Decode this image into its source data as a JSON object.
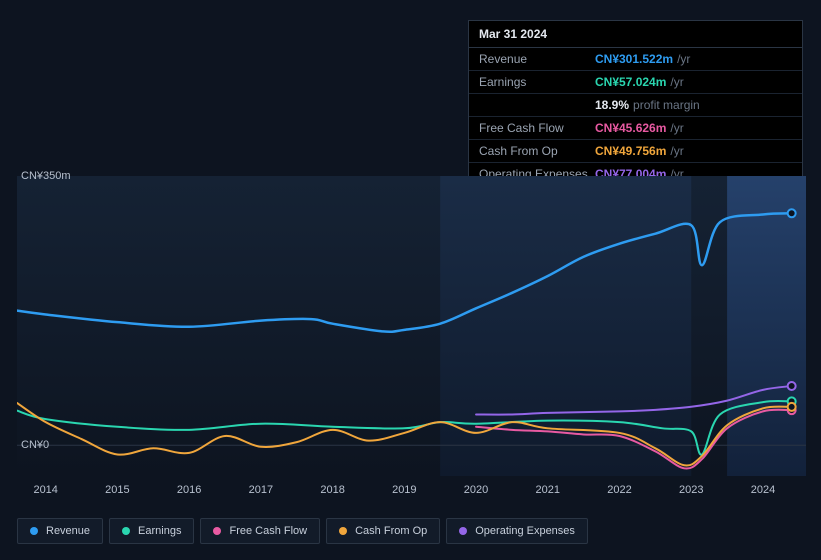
{
  "chart": {
    "type": "line",
    "background_color": "#0d1420",
    "grid_color": "#1a2330",
    "future_highlight_start": 2023.5,
    "future_highlight_color": "#1c2b42",
    "y_axis": {
      "ticks": [
        {
          "v": 0,
          "label": "CN¥0"
        },
        {
          "v": 350,
          "label": "CN¥350m"
        }
      ],
      "min": -40,
      "max": 350,
      "label_fontsize": 11
    },
    "x_axis": {
      "ticks": [
        2014,
        2015,
        2016,
        2017,
        2018,
        2019,
        2020,
        2021,
        2022,
        2023,
        2024
      ],
      "min": 2013.6,
      "max": 2024.6,
      "label_fontsize": 11
    },
    "series": [
      {
        "name": "Revenue",
        "color": "#2e9cf1",
        "line_width": 2.5,
        "end_marker": true,
        "points": [
          [
            2013.6,
            175
          ],
          [
            2014,
            170
          ],
          [
            2015,
            160
          ],
          [
            2016,
            154
          ],
          [
            2017,
            162
          ],
          [
            2017.7,
            164
          ],
          [
            2018,
            158
          ],
          [
            2018.7,
            148
          ],
          [
            2019,
            150
          ],
          [
            2019.5,
            158
          ],
          [
            2020,
            178
          ],
          [
            2020.5,
            198
          ],
          [
            2021,
            220
          ],
          [
            2021.5,
            245
          ],
          [
            2022,
            262
          ],
          [
            2022.5,
            275
          ],
          [
            2023,
            286
          ],
          [
            2023.15,
            234
          ],
          [
            2023.4,
            290
          ],
          [
            2024,
            300
          ],
          [
            2024.4,
            301.5
          ]
        ]
      },
      {
        "name": "Earnings",
        "color": "#2ad6b0",
        "line_width": 2,
        "end_marker": true,
        "points": [
          [
            2013.6,
            45
          ],
          [
            2014,
            34
          ],
          [
            2015,
            24
          ],
          [
            2016,
            20
          ],
          [
            2017,
            28
          ],
          [
            2018,
            24
          ],
          [
            2019,
            22
          ],
          [
            2019.5,
            30
          ],
          [
            2020,
            28
          ],
          [
            2021,
            32
          ],
          [
            2022,
            30
          ],
          [
            2022.6,
            22
          ],
          [
            2023,
            18
          ],
          [
            2023.15,
            -12
          ],
          [
            2023.4,
            40
          ],
          [
            2024,
            56
          ],
          [
            2024.4,
            57
          ]
        ]
      },
      {
        "name": "Free Cash Flow",
        "color": "#e85aa2",
        "line_width": 2,
        "end_marker": true,
        "points": [
          [
            2020,
            24
          ],
          [
            2020.5,
            20
          ],
          [
            2021,
            18
          ],
          [
            2021.5,
            14
          ],
          [
            2022,
            12
          ],
          [
            2022.5,
            -8
          ],
          [
            2022.9,
            -30
          ],
          [
            2023.15,
            -18
          ],
          [
            2023.5,
            22
          ],
          [
            2024,
            44
          ],
          [
            2024.4,
            45.6
          ]
        ]
      },
      {
        "name": "Cash From Op",
        "color": "#f0a63c",
        "line_width": 2,
        "end_marker": true,
        "points": [
          [
            2013.6,
            55
          ],
          [
            2014,
            30
          ],
          [
            2014.5,
            8
          ],
          [
            2015,
            -12
          ],
          [
            2015.5,
            -4
          ],
          [
            2016,
            -10
          ],
          [
            2016.5,
            12
          ],
          [
            2017,
            -2
          ],
          [
            2017.5,
            4
          ],
          [
            2018,
            20
          ],
          [
            2018.5,
            6
          ],
          [
            2019,
            16
          ],
          [
            2019.5,
            30
          ],
          [
            2020,
            16
          ],
          [
            2020.5,
            30
          ],
          [
            2021,
            22
          ],
          [
            2022,
            16
          ],
          [
            2022.5,
            -4
          ],
          [
            2022.9,
            -26
          ],
          [
            2023.15,
            -14
          ],
          [
            2023.5,
            26
          ],
          [
            2024,
            48
          ],
          [
            2024.4,
            49.8
          ]
        ]
      },
      {
        "name": "Operating Expenses",
        "color": "#9466e8",
        "line_width": 2,
        "end_marker": true,
        "points": [
          [
            2020,
            40
          ],
          [
            2020.5,
            40
          ],
          [
            2021,
            42
          ],
          [
            2022,
            44
          ],
          [
            2022.5,
            46
          ],
          [
            2023,
            50
          ],
          [
            2023.5,
            58
          ],
          [
            2024,
            72
          ],
          [
            2024.4,
            77
          ]
        ]
      }
    ]
  },
  "tooltip": {
    "date": "Mar 31 2024",
    "rows": [
      {
        "label": "Revenue",
        "value": "CN¥301.522m",
        "suffix": "/yr",
        "color": "#2e9cf1"
      },
      {
        "label": "Earnings",
        "value": "CN¥57.024m",
        "suffix": "/yr",
        "color": "#2ad6b0"
      },
      {
        "label": "",
        "value": "18.9%",
        "suffix": "profit margin",
        "color": "#e4e8ef"
      },
      {
        "label": "Free Cash Flow",
        "value": "CN¥45.626m",
        "suffix": "/yr",
        "color": "#e85aa2"
      },
      {
        "label": "Cash From Op",
        "value": "CN¥49.756m",
        "suffix": "/yr",
        "color": "#f0a63c"
      },
      {
        "label": "Operating Expenses",
        "value": "CN¥77.004m",
        "suffix": "/yr",
        "color": "#9466e8"
      }
    ]
  },
  "legend": [
    {
      "label": "Revenue",
      "color": "#2e9cf1"
    },
    {
      "label": "Earnings",
      "color": "#2ad6b0"
    },
    {
      "label": "Free Cash Flow",
      "color": "#e85aa2"
    },
    {
      "label": "Cash From Op",
      "color": "#f0a63c"
    },
    {
      "label": "Operating Expenses",
      "color": "#9466e8"
    }
  ]
}
